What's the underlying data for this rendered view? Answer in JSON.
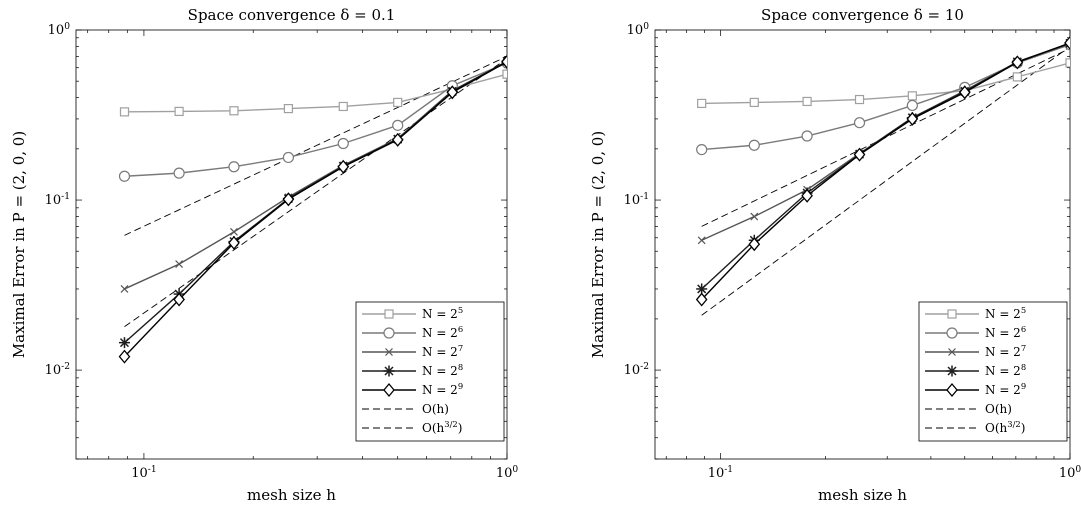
{
  "chart_data": [
    {
      "type": "line",
      "title": "Space convergence δ = 0.1",
      "xlabel": "mesh size h",
      "ylabel": "Maximal Error in P = (2, 0, 0)",
      "xscale": "log",
      "yscale": "log",
      "xlim": [
        0.065,
        1.0
      ],
      "ylim": [
        0.003,
        1.0
      ],
      "xticks": [
        0.1,
        1
      ],
      "xtick_labels": [
        "10^-1",
        "10^0"
      ],
      "yticks": [
        0.01,
        0.1,
        1
      ],
      "ytick_labels": [
        "10^-2",
        "10^-1",
        "10^0"
      ],
      "grid": false,
      "legend_position": "bottom-right",
      "x": [
        0.0884,
        0.125,
        0.177,
        0.25,
        0.354,
        0.5,
        0.707,
        1.0
      ],
      "series": [
        {
          "name": "N = 2^5",
          "color": "#a0a0a0",
          "marker": "square",
          "style": "solid",
          "values": [
            0.33,
            0.332,
            0.335,
            0.345,
            0.355,
            0.375,
            0.45,
            0.55
          ]
        },
        {
          "name": "N = 2^6",
          "color": "#7a7a7a",
          "marker": "circle",
          "style": "solid",
          "values": [
            0.138,
            0.144,
            0.157,
            0.178,
            0.215,
            0.275,
            0.47,
            0.64
          ]
        },
        {
          "name": "N = 2^7",
          "color": "#555555",
          "marker": "x",
          "style": "solid",
          "values": [
            0.03,
            0.042,
            0.065,
            0.104,
            0.16,
            0.23,
            0.44,
            0.65
          ]
        },
        {
          "name": "N = 2^8",
          "color": "#1e1e1e",
          "marker": "asterisk",
          "style": "solid",
          "values": [
            0.0145,
            0.028,
            0.057,
            0.102,
            0.158,
            0.228,
            0.435,
            0.655
          ]
        },
        {
          "name": "N = 2^9",
          "color": "#000000",
          "marker": "diamond",
          "style": "solid",
          "values": [
            0.012,
            0.026,
            0.056,
            0.101,
            0.157,
            0.226,
            0.43,
            0.65
          ]
        },
        {
          "name": "O(h)",
          "color": "#000000",
          "marker": "none",
          "style": "dashed",
          "x": [
            0.0884,
            1.0
          ],
          "values": [
            0.062,
            0.7
          ]
        },
        {
          "name": "O(h^{3/2})",
          "color": "#000000",
          "marker": "none",
          "style": "dashed",
          "x": [
            0.0884,
            1.0
          ],
          "values": [
            0.018,
            0.68
          ]
        }
      ]
    },
    {
      "type": "line",
      "title": "Space convergence δ = 10",
      "xlabel": "mesh size h",
      "ylabel": "Maximal Error in P = (2, 0, 0)",
      "xscale": "log",
      "yscale": "log",
      "xlim": [
        0.065,
        1.0
      ],
      "ylim": [
        0.003,
        1.0
      ],
      "xticks": [
        0.1,
        1
      ],
      "xtick_labels": [
        "10^-1",
        "10^0"
      ],
      "yticks": [
        0.01,
        0.1,
        1
      ],
      "ytick_labels": [
        "10^-2",
        "10^-1",
        "10^0"
      ],
      "grid": false,
      "legend_position": "bottom-right",
      "x": [
        0.0884,
        0.125,
        0.177,
        0.25,
        0.354,
        0.5,
        0.707,
        1.0
      ],
      "series": [
        {
          "name": "N = 2^5",
          "color": "#a0a0a0",
          "marker": "square",
          "style": "solid",
          "values": [
            0.37,
            0.375,
            0.38,
            0.39,
            0.41,
            0.44,
            0.53,
            0.64
          ]
        },
        {
          "name": "N = 2^6",
          "color": "#7a7a7a",
          "marker": "circle",
          "style": "solid",
          "values": [
            0.198,
            0.21,
            0.238,
            0.285,
            0.36,
            0.46,
            0.64,
            0.82
          ]
        },
        {
          "name": "N = 2^7",
          "color": "#555555",
          "marker": "x",
          "style": "solid",
          "values": [
            0.058,
            0.08,
            0.115,
            0.188,
            0.305,
            0.44,
            0.65,
            0.83
          ]
        },
        {
          "name": "N = 2^8",
          "color": "#1e1e1e",
          "marker": "asterisk",
          "style": "solid",
          "values": [
            0.03,
            0.058,
            0.11,
            0.186,
            0.305,
            0.435,
            0.65,
            0.835
          ]
        },
        {
          "name": "N = 2^9",
          "color": "#000000",
          "marker": "diamond",
          "style": "solid",
          "values": [
            0.026,
            0.055,
            0.106,
            0.185,
            0.3,
            0.43,
            0.645,
            0.84
          ]
        },
        {
          "name": "O(h)",
          "color": "#000000",
          "marker": "none",
          "style": "dashed",
          "x": [
            0.0884,
            1.0
          ],
          "values": [
            0.07,
            0.78
          ]
        },
        {
          "name": "O(h^{3/2})",
          "color": "#000000",
          "marker": "none",
          "style": "dashed",
          "x": [
            0.0884,
            1.0
          ],
          "values": [
            0.021,
            0.8
          ]
        }
      ]
    }
  ]
}
